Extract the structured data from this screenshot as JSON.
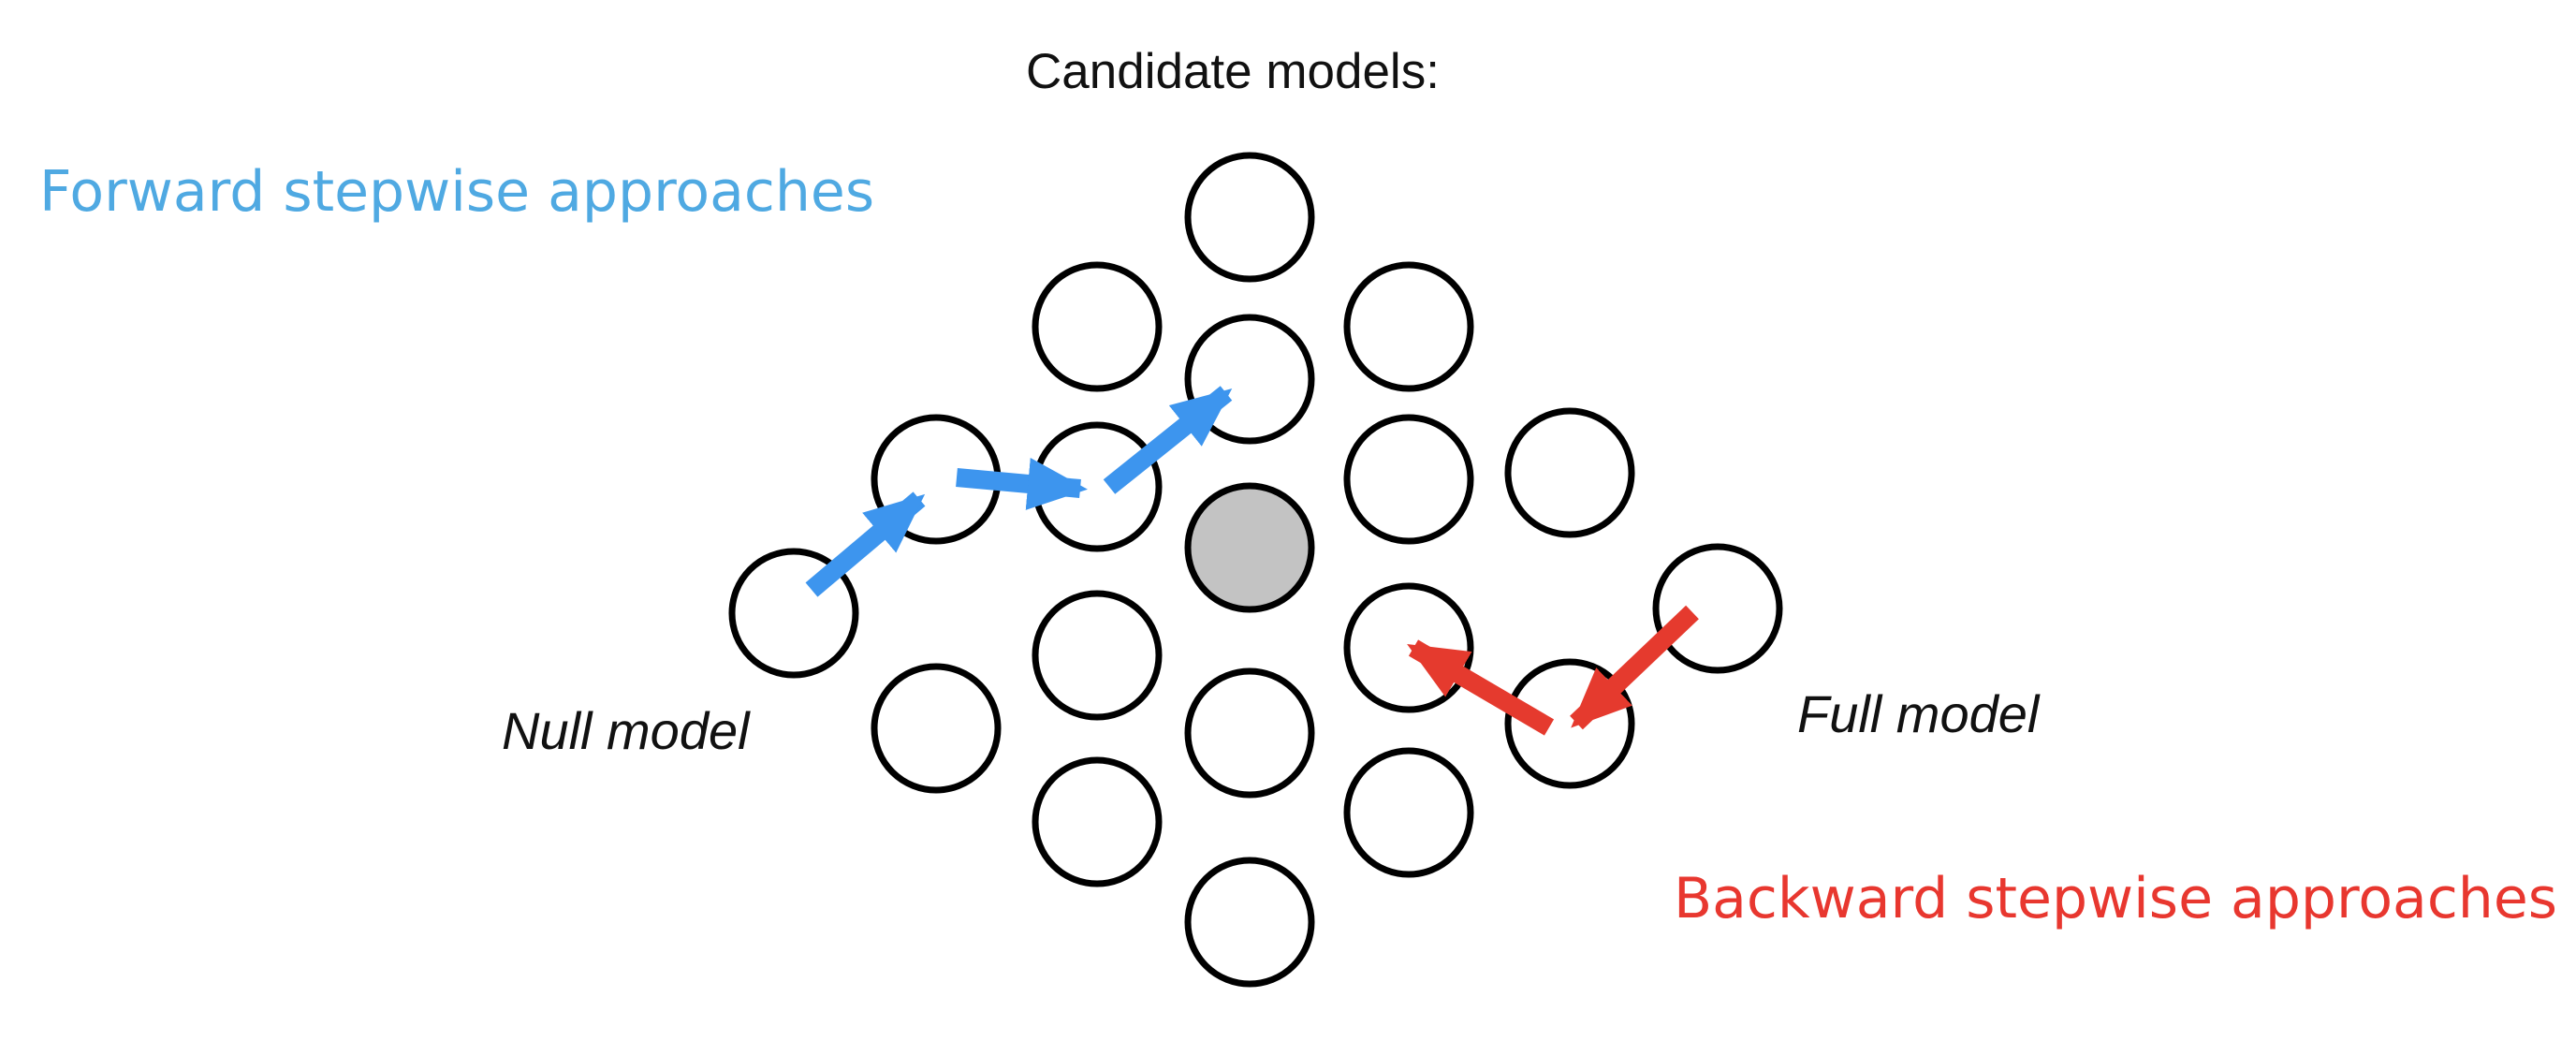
{
  "title": "Candidate models:",
  "forward_label": "Forward stepwise approaches",
  "backward_label": "Backward stepwise approaches",
  "null_label": "Null model",
  "full_label": "Full model",
  "colors": {
    "forward": "#4FA9E2",
    "forward_arrow": "#3D95EE",
    "backward": "#E8372F",
    "backward_arrow": "#E53A2E",
    "highlight_fill": "#C3C3C3",
    "node_stroke": "#000000"
  }
}
